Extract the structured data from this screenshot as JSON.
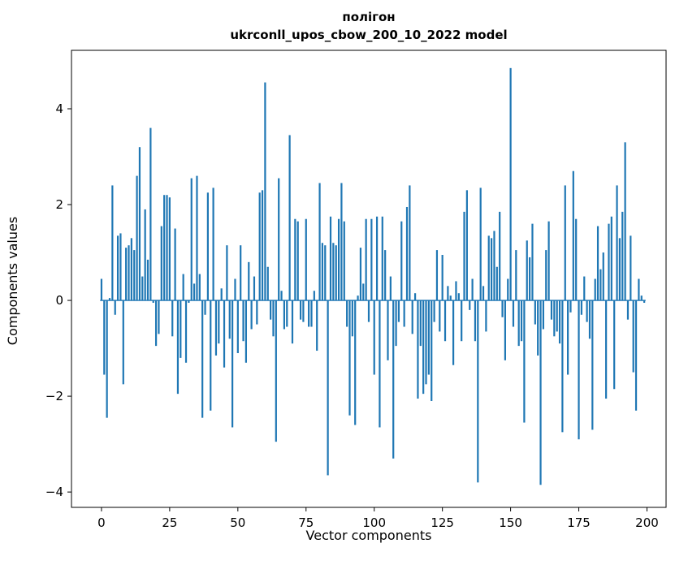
{
  "title": {
    "line1": "полігон",
    "line2": "ukrconll_upos_cbow_200_10_2022 model"
  },
  "axes": {
    "xlabel": "Vector components",
    "ylabel": "Components values"
  },
  "chart_data": {
    "type": "bar",
    "title": "полігон\nukrconll_upos_cbow_200_10_2022 model",
    "xlabel": "Vector components",
    "ylabel": "Components values",
    "bar_color": "#1f77b4",
    "frame_color": "#000000",
    "xlim": [
      -11,
      207
    ],
    "ylim": [
      -4.32,
      5.22
    ],
    "xticks": [
      0,
      25,
      50,
      75,
      100,
      125,
      150,
      175,
      200
    ],
    "yticks": [
      -4,
      -2,
      0,
      2,
      4
    ],
    "grid": false,
    "legend": "none",
    "values": [
      0.45,
      -1.55,
      -2.45,
      0.05,
      2.4,
      -0.3,
      1.35,
      1.4,
      -1.75,
      1.1,
      1.15,
      1.3,
      1.05,
      2.6,
      3.2,
      0.5,
      1.9,
      0.85,
      3.6,
      -0.05,
      -0.95,
      -0.7,
      1.55,
      2.2,
      2.2,
      2.15,
      -0.75,
      1.5,
      -1.95,
      -1.2,
      0.55,
      -1.3,
      -0.05,
      2.55,
      0.35,
      2.6,
      0.55,
      -2.45,
      -0.3,
      2.25,
      -2.3,
      2.35,
      -1.15,
      -0.9,
      0.25,
      -1.4,
      1.15,
      -0.8,
      -2.65,
      0.45,
      -1.1,
      1.15,
      -0.85,
      -1.3,
      0.8,
      -0.6,
      0.5,
      -0.5,
      2.25,
      2.3,
      4.55,
      0.7,
      -0.4,
      -0.75,
      -2.95,
      2.55,
      0.2,
      -0.6,
      -0.55,
      3.45,
      -0.9,
      1.7,
      1.65,
      -0.4,
      -0.45,
      1.7,
      -0.55,
      -0.55,
      0.2,
      -1.05,
      2.45,
      1.2,
      1.15,
      -3.65,
      1.75,
      1.2,
      1.15,
      1.7,
      2.45,
      1.65,
      -0.55,
      -2.4,
      -0.75,
      -2.6,
      0.1,
      1.1,
      0.35,
      1.7,
      -0.45,
      1.7,
      -1.55,
      1.75,
      -2.65,
      1.75,
      1.05,
      -1.25,
      0.5,
      -3.3,
      -0.95,
      -0.45,
      1.65,
      -0.55,
      1.95,
      2.4,
      -0.7,
      0.15,
      -2.05,
      -0.95,
      -1.95,
      -1.75,
      -1.55,
      -2.1,
      -0.45,
      1.05,
      -0.65,
      0.95,
      -0.85,
      0.3,
      0.1,
      -1.35,
      0.4,
      0.15,
      -0.85,
      1.85,
      2.3,
      -0.2,
      0.45,
      -0.85,
      -3.8,
      2.35,
      0.3,
      -0.65,
      1.35,
      1.3,
      1.45,
      0.7,
      1.85,
      -0.35,
      -1.25,
      0.45,
      4.85,
      -0.55,
      1.05,
      -0.95,
      -0.85,
      -2.55,
      1.25,
      0.9,
      1.6,
      -0.5,
      -1.15,
      -3.85,
      -0.6,
      1.05,
      1.65,
      -0.4,
      -0.75,
      -0.65,
      -0.9,
      -2.75,
      2.4,
      -1.55,
      -0.25,
      2.7,
      1.7,
      -2.9,
      -0.3,
      0.5,
      -0.45,
      -0.8,
      -2.7,
      0.45,
      1.55,
      0.65,
      1.0,
      -2.05,
      1.6,
      1.75,
      -1.85,
      2.4,
      1.3,
      1.85,
      3.3,
      -0.4,
      1.35,
      -1.5,
      -2.3,
      0.45,
      0.1,
      -0.05
    ]
  }
}
